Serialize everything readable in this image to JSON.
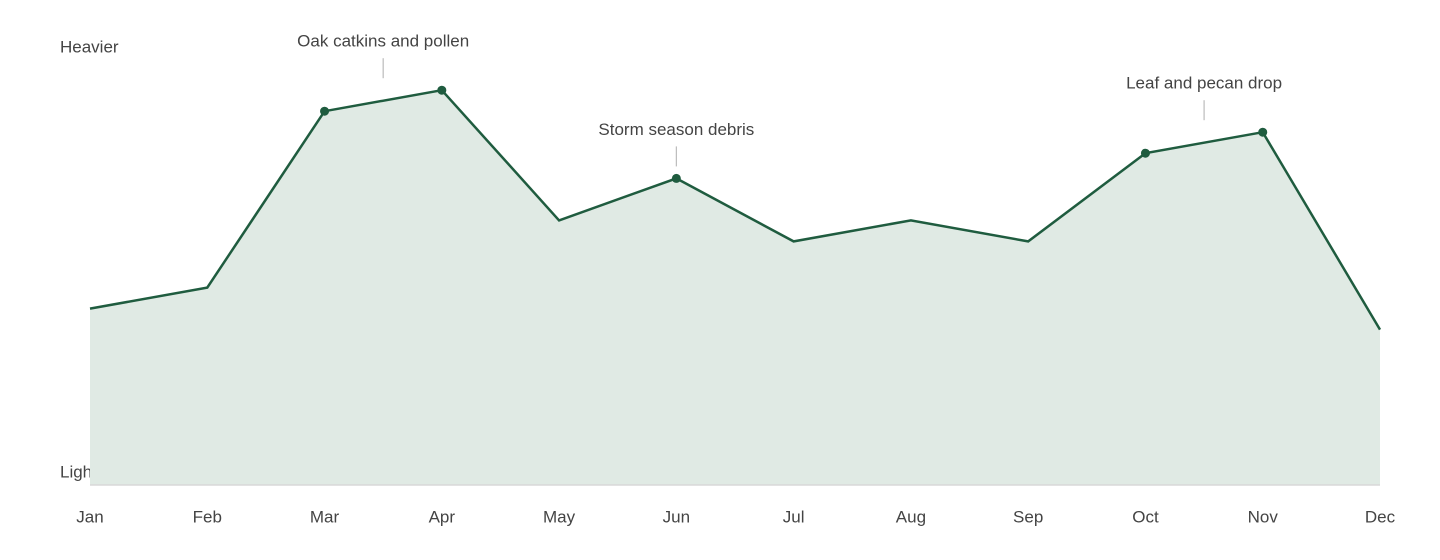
{
  "chart_data": {
    "type": "area",
    "y_top_label": "Heavier",
    "y_bottom_label": "Lighter",
    "categories": [
      "Jan",
      "Feb",
      "Mar",
      "Apr",
      "May",
      "Jun",
      "Jul",
      "Aug",
      "Sep",
      "Oct",
      "Nov",
      "Dec"
    ],
    "values": [
      42,
      47,
      89,
      94,
      63,
      73,
      58,
      63,
      58,
      79,
      84,
      37
    ],
    "marked": [
      false,
      false,
      true,
      true,
      false,
      true,
      false,
      false,
      false,
      true,
      true,
      false
    ],
    "ylim": [
      0,
      100
    ],
    "color": "#1f5c3f",
    "fill": "#e0eae4",
    "annotations": [
      {
        "text": "Oak catkins and pollen",
        "at": [
          "Mar",
          "Apr"
        ]
      },
      {
        "text": "Storm season debris",
        "at": [
          "Jun"
        ]
      },
      {
        "text": "Leaf and pecan drop",
        "at": [
          "Oct",
          "Nov"
        ]
      }
    ]
  }
}
